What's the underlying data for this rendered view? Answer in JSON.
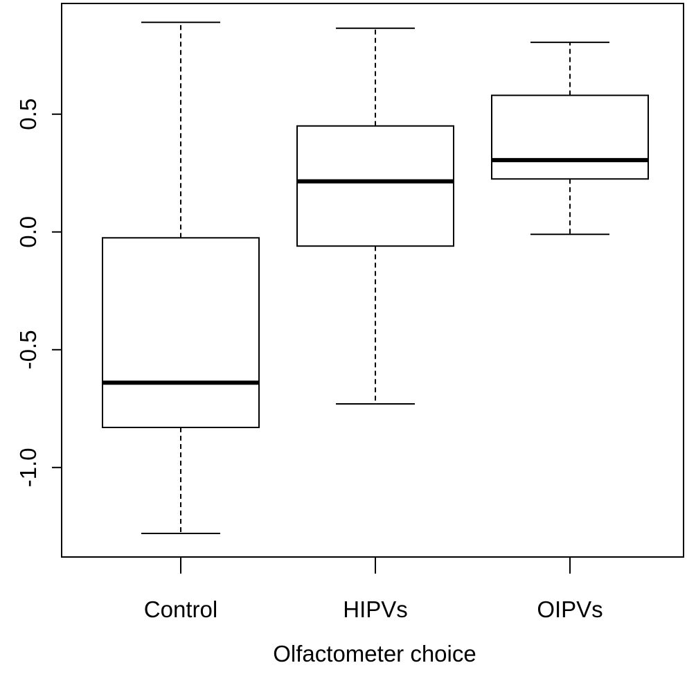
{
  "chart_data": {
    "type": "boxplot",
    "title": "",
    "xlabel": "Olfactometer choice",
    "ylabel": "",
    "ylim": [
      -1.38,
      0.97
    ],
    "yticks": [
      "-1.0",
      "-0.5",
      "0.0",
      "0.5"
    ],
    "ytick_values": [
      -1.0,
      -0.5,
      0.0,
      0.5
    ],
    "grid": false,
    "legend": "none",
    "categories": [
      "Control",
      "HIPVs",
      "OIPVs"
    ],
    "boxes": [
      {
        "category": "Control",
        "min": -1.28,
        "q1": -0.83,
        "median": -0.64,
        "q3": -0.025,
        "max": 0.89
      },
      {
        "category": "HIPVs",
        "min": -0.73,
        "q1": -0.06,
        "median": 0.215,
        "q3": 0.45,
        "max": 0.865
      },
      {
        "category": "OIPVs",
        "min": -0.01,
        "q1": 0.225,
        "median": 0.305,
        "q3": 0.58,
        "max": 0.805
      }
    ],
    "colors": {
      "stroke": "#000000",
      "fill": "#ffffff",
      "background": "#ffffff"
    }
  }
}
